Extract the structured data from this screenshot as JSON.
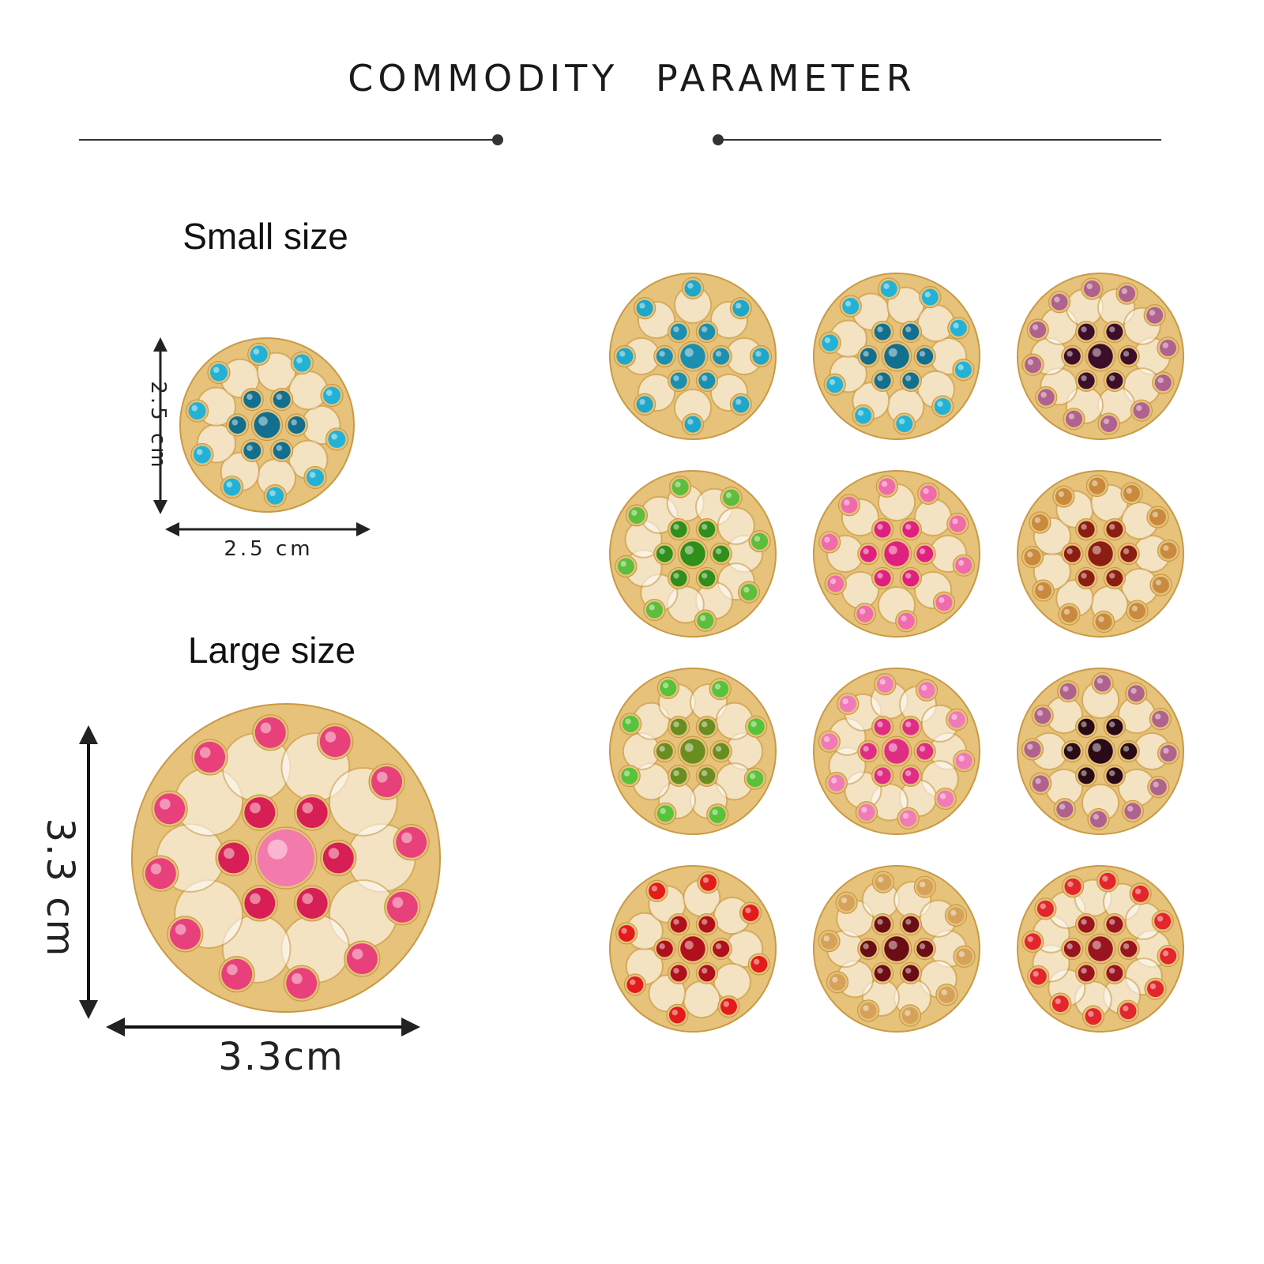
{
  "header": {
    "title": "COMMODITY   PARAMETER"
  },
  "small": {
    "label": "Small size",
    "width_label": "2.5 cm",
    "height_label": "2.5 cm"
  },
  "large": {
    "label": "Large size",
    "width_label": "3.3cm",
    "height_label": "3.3 cm"
  },
  "colors": {
    "gold": "#e6c27a",
    "gold_dark": "#c99a45",
    "line": "#333333"
  },
  "brooches": [
    {
      "name": "brooch-blue-round",
      "stone": "#1ea7c9",
      "center": "#1b8fb0"
    },
    {
      "name": "brooch-blue-flower",
      "stone": "#23b2d6",
      "center": "#136f8e"
    },
    {
      "name": "brooch-violet-lace",
      "stone": "#b0628e",
      "center": "#3d0e2a"
    },
    {
      "name": "brooch-green-diamond",
      "stone": "#5ebd3c",
      "center": "#2f8f1b"
    },
    {
      "name": "brooch-pink-flower",
      "stone": "#f06aac",
      "center": "#e0207f"
    },
    {
      "name": "brooch-amber-snowflake",
      "stone": "#c98a3d",
      "center": "#8c1d12"
    },
    {
      "name": "brooch-green-star",
      "stone": "#58c23b",
      "center": "#6a8d1f"
    },
    {
      "name": "brooch-pink-petal",
      "stone": "#f17ab8",
      "center": "#e02d84"
    },
    {
      "name": "brooch-plum-swirl",
      "stone": "#b0628e",
      "center": "#2a0a16"
    },
    {
      "name": "brooch-red-round",
      "stone": "#e31b1b",
      "center": "#b0101b"
    },
    {
      "name": "brooch-topaz-branch",
      "stone": "#d6a25a",
      "center": "#6b0d14"
    },
    {
      "name": "brooch-red-cluster",
      "stone": "#e2262c",
      "center": "#9a1420"
    }
  ]
}
